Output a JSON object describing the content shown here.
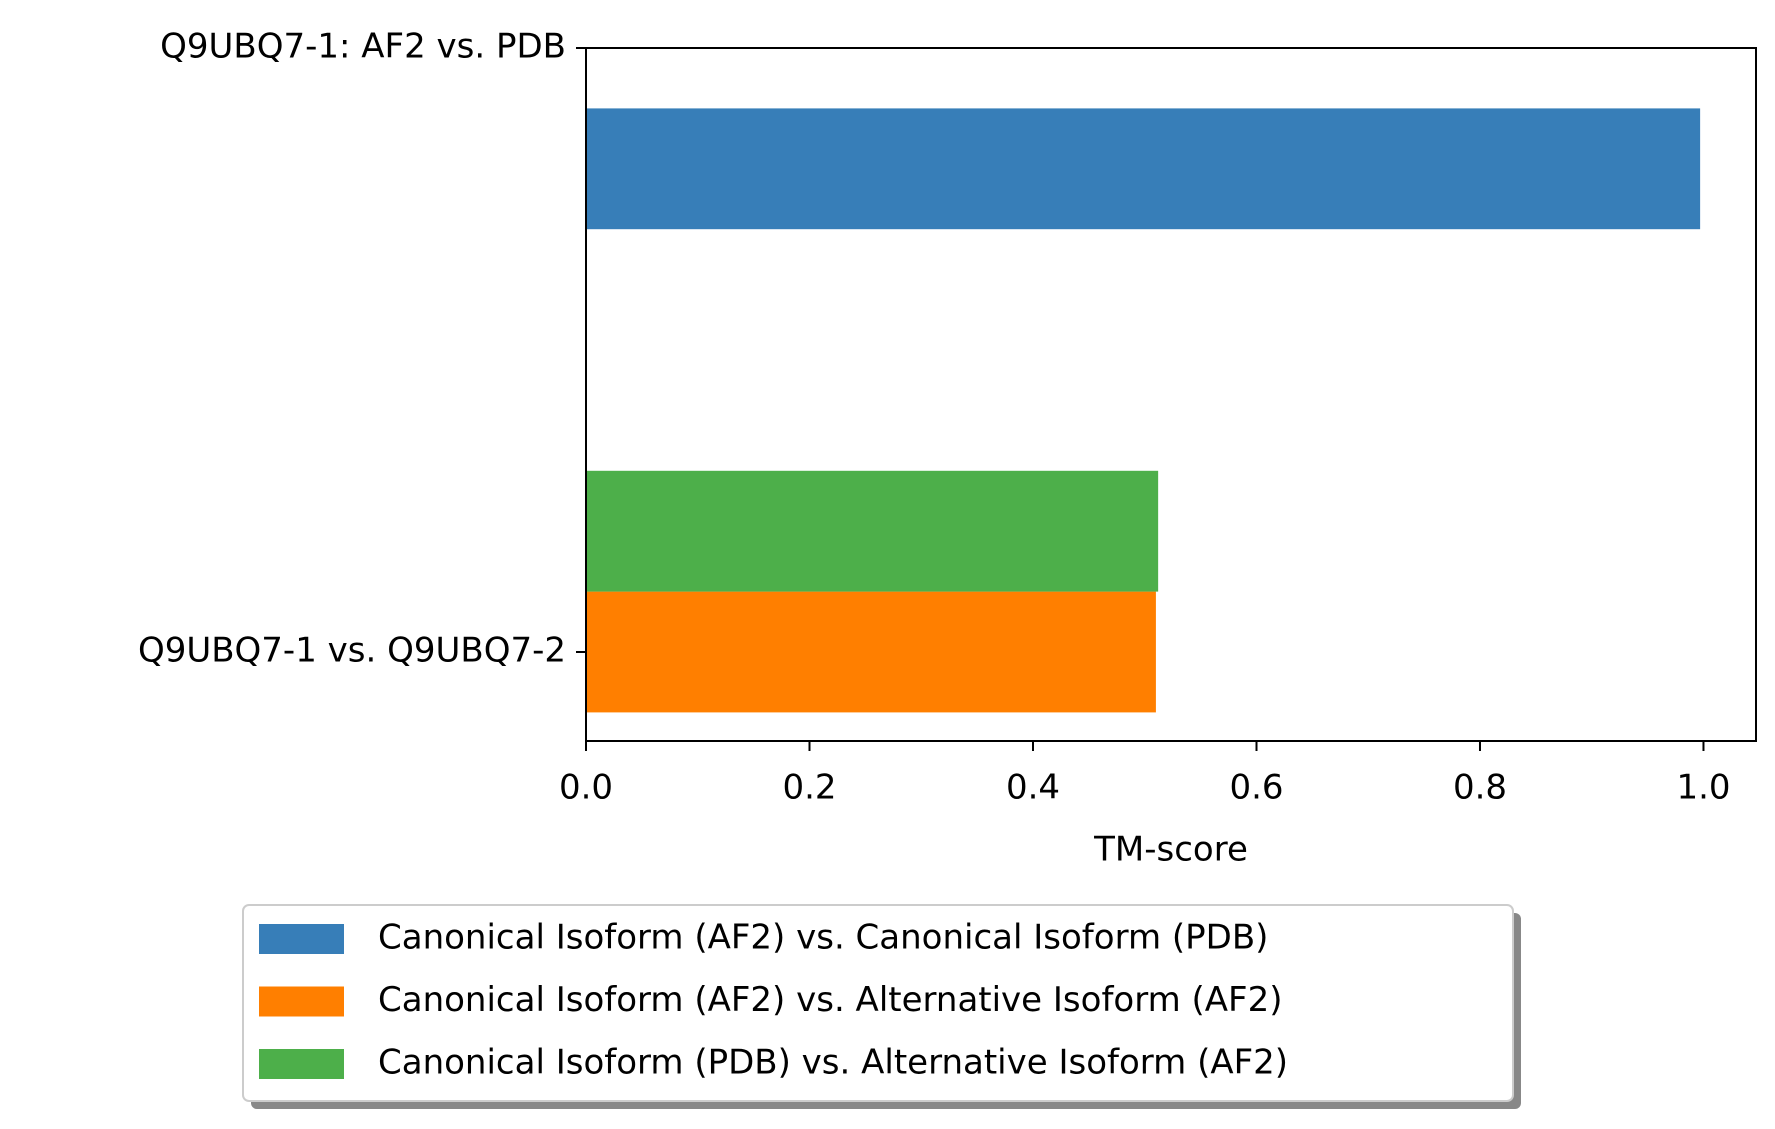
{
  "chart_data": {
    "type": "bar",
    "orientation": "horizontal",
    "categories": [
      "Q9UBQ7-1: AF2 vs. PDB",
      "Q9UBQ7-1 vs. Q9UBQ7-2"
    ],
    "series": [
      {
        "name": "Canonical Isoform (AF2) vs. Canonical Isoform (PDB)",
        "color": "#377eb8",
        "values": [
          0.997,
          null
        ]
      },
      {
        "name": "Canonical Isoform (AF2) vs. Alternative Isoform (AF2)",
        "color": "#ff7f00",
        "values": [
          null,
          0.51
        ]
      },
      {
        "name": "Canonical Isoform (PDB) vs. Alternative Isoform (AF2)",
        "color": "#4daf4a",
        "values": [
          null,
          0.512
        ]
      }
    ],
    "xlabel": "TM-score",
    "xlim": [
      0,
      1.047
    ],
    "xticks": [
      {
        "value": 0,
        "label": "0.0"
      },
      0.2,
      0.4,
      0.6,
      0.8,
      {
        "value": 1,
        "label": "1.0"
      }
    ],
    "grid": false,
    "legend": "lower center"
  }
}
